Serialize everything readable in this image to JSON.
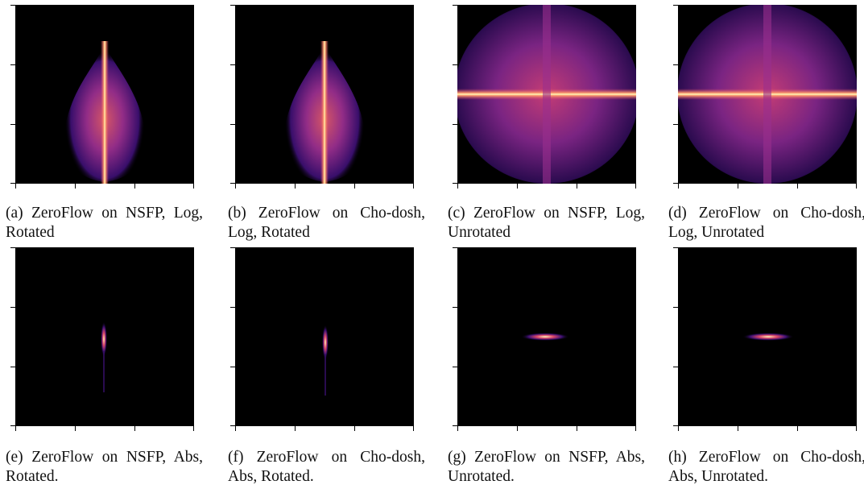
{
  "figure": {
    "panels": [
      {
        "id": "a",
        "caption": "(a) ZeroFlow on NSFP, Log, Rotated",
        "scale": "log",
        "orientation": "rotated"
      },
      {
        "id": "b",
        "caption": "(b) ZeroFlow on Chodosh, Log, Rotated",
        "caption_display": "(b) ZeroFlow on Cho-dosh, Log, Rotated",
        "scale": "log",
        "orientation": "rotated"
      },
      {
        "id": "c",
        "caption": "(c) ZeroFlow on NSFP, Log, Unrotated",
        "scale": "log",
        "orientation": "unrotated"
      },
      {
        "id": "d",
        "caption": "(d) ZeroFlow on Chodosh, Log, Unrotated",
        "caption_display": "(d) ZeroFlow on Cho-dosh, Log, Unrotated",
        "scale": "log",
        "orientation": "unrotated"
      },
      {
        "id": "e",
        "caption": "(e) ZeroFlow on NSFP, Abs, Rotated.",
        "scale": "abs",
        "orientation": "rotated"
      },
      {
        "id": "f",
        "caption": "(f) ZeroFlow on Chodosh, Abs, Rotated.",
        "caption_display": "(f) ZeroFlow on Cho-dosh, Abs, Rotated.",
        "scale": "abs",
        "orientation": "rotated"
      },
      {
        "id": "g",
        "caption": "(g) ZeroFlow on NSFP, Abs, Unrotated.",
        "scale": "abs",
        "orientation": "unrotated"
      },
      {
        "id": "h",
        "caption": "(h) ZeroFlow on Chodosh, Abs, Unrotated.",
        "caption_display": "(h) ZeroFlow on Cho-dosh, Abs, Unrotated.",
        "scale": "abs",
        "orientation": "unrotated"
      }
    ],
    "colormap": [
      "#000004",
      "#3b0f70",
      "#8c2981",
      "#de4968",
      "#fe9f6d",
      "#fcfdbf"
    ]
  }
}
